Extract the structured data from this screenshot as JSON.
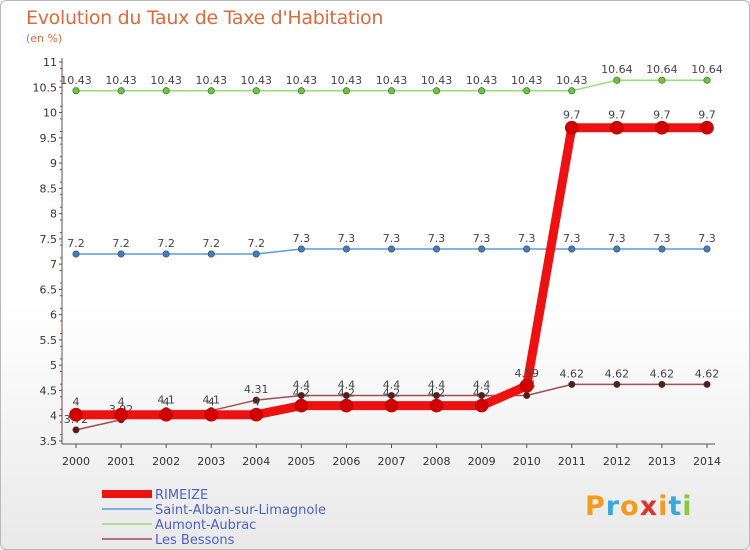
{
  "title": "Evolution du Taux de Taxe d'Habitation",
  "subtitle": "(en %)",
  "logo": [
    "P",
    "r",
    "o",
    "x",
    "i",
    "t",
    "i"
  ],
  "logo_colors": [
    "#f29b1f",
    "#3ba8dc",
    "#f29b1f",
    "#e0322c",
    "#f29b1f",
    "#3ba8dc",
    "#8dc63f"
  ],
  "chart_data": {
    "type": "line",
    "title": "Evolution du Taux de Taxe d'Habitation",
    "ylabel": "(en %)",
    "xlabel": "",
    "x": [
      "2000",
      "2001",
      "2002",
      "2003",
      "2004",
      "2005",
      "2006",
      "2007",
      "2008",
      "2009",
      "2010",
      "2011",
      "2012",
      "2013",
      "2014"
    ],
    "ylim": [
      3.5,
      11
    ],
    "yticks": [
      "3.5",
      "4",
      "4.5",
      "5",
      "5.5",
      "6",
      "6.5",
      "7",
      "7.5",
      "8",
      "8.5",
      "9",
      "9.5",
      "10",
      "10.5",
      "11"
    ],
    "series": [
      {
        "name": "Saint-Alban-sur-Limagnole",
        "color": "#5b9bd5",
        "dot": "#3f7fc0",
        "width": 1.5,
        "marker": 3.2,
        "values": [
          7.2,
          7.2,
          7.2,
          7.2,
          7.2,
          7.3,
          7.3,
          7.3,
          7.3,
          7.3,
          7.3,
          7.3,
          7.3,
          7.3,
          7.3
        ],
        "labels": [
          "7.2",
          "7.2",
          "7.2",
          "7.2",
          "7.2",
          "7.3",
          "7.3",
          "7.3",
          "7.3",
          "7.3",
          "7.3",
          "7.3",
          "7.3",
          "7.3",
          "7.3"
        ]
      },
      {
        "name": "Aumont-Aubrac",
        "color": "#99dd77",
        "dot": "#66cc33",
        "width": 1.5,
        "marker": 3.2,
        "values": [
          10.43,
          10.43,
          10.43,
          10.43,
          10.43,
          10.43,
          10.43,
          10.43,
          10.43,
          10.43,
          10.43,
          10.43,
          10.64,
          10.64,
          10.64
        ],
        "labels": [
          "10.43",
          "10.43",
          "10.43",
          "10.43",
          "10.43",
          "10.43",
          "10.43",
          "10.43",
          "10.43",
          "10.43",
          "10.43",
          "10.43",
          "10.64",
          "10.64",
          "10.64"
        ]
      },
      {
        "name": "Les Bessons",
        "color": "#a05050",
        "dot": "#5a1a1a",
        "width": 1.5,
        "marker": 3.2,
        "values": [
          3.72,
          3.92,
          4.1,
          4.1,
          4.31,
          4.4,
          4.4,
          4.4,
          4.4,
          4.4,
          4.4,
          4.62,
          4.62,
          4.62,
          4.62
        ],
        "labels": [
          "3.72",
          "3.92",
          "4.1",
          "4.1",
          "4.31",
          "4.4",
          "4.4",
          "4.4",
          "4.4",
          "4.4",
          "4.4",
          "4.62",
          "4.62",
          "4.62",
          "4.62"
        ]
      },
      {
        "name": "RIMEIZE",
        "color": "#ee1111",
        "dot": "#d10000",
        "width": 9,
        "marker": 6.5,
        "values": [
          4.02,
          4.02,
          4.02,
          4.02,
          4.02,
          4.2,
          4.2,
          4.2,
          4.2,
          4.2,
          4.59,
          9.7,
          9.7,
          9.7,
          9.7
        ],
        "labels": [
          "4",
          "4",
          "4",
          "4",
          "4",
          "4.2",
          "4.2",
          "4.2",
          "4.2",
          "4.2",
          "4.59",
          "9.7",
          "9.7",
          "9.7",
          "9.7"
        ]
      }
    ],
    "legend": [
      {
        "name": "RIMEIZE",
        "color": "#ee1111",
        "thick": true
      },
      {
        "name": "Saint-Alban-sur-Limagnole",
        "color": "#5b9bd5",
        "thick": false
      },
      {
        "name": "Aumont-Aubrac",
        "color": "#99dd77",
        "thick": false
      },
      {
        "name": "Les Bessons",
        "color": "#a05050",
        "thick": false
      }
    ],
    "legend_position": "bottom-left",
    "grid": false
  }
}
